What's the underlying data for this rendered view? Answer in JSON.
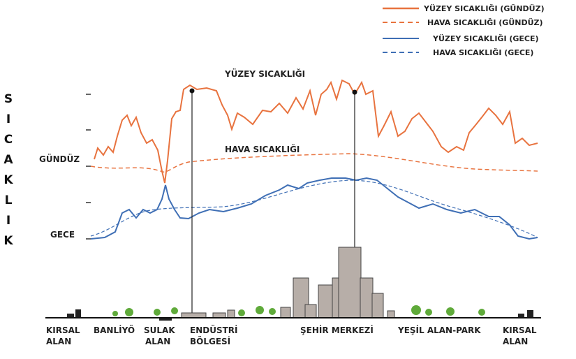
{
  "legend": {
    "items": [
      "YÜZEY SICAKLIĞI (GÜNDÜZ)",
      "HAVA SICAKLIĞI (GÜNDÜZ)",
      "YÜZEY SICAKLIĞI (GECE)",
      "HAVA SICAKLIĞI (GECE)"
    ]
  },
  "axis": {
    "label": "SICAKLIK"
  },
  "annotations": {
    "day": "GÜNDÜZ",
    "night": "GECE",
    "surface": "YÜZEY SICAKLIĞI",
    "air": "HAVA SICAKLIĞI"
  },
  "zones": [
    {
      "lines": [
        "KIRSAL",
        "ALAN"
      ]
    },
    {
      "lines": [
        "BANLİYÖ"
      ]
    },
    {
      "lines": [
        "SULAK",
        "ALAN"
      ]
    },
    {
      "lines": [
        "ENDÜSTRİ",
        "BÖLGESİ"
      ]
    },
    {
      "lines": [
        "ŞEHİR MERKEZİ"
      ]
    },
    {
      "lines": [
        "YEŞİL ALAN-PARK"
      ]
    },
    {
      "lines": [
        "KIRSAL",
        "ALAN"
      ]
    }
  ]
}
